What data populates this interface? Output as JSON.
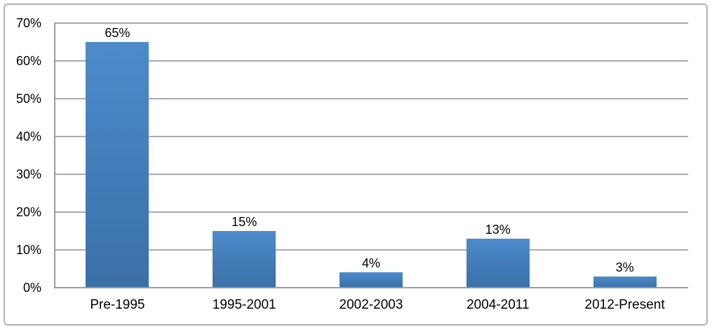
{
  "chart_data": {
    "type": "bar",
    "title": "",
    "xlabel": "",
    "ylabel": "",
    "categories": [
      "Pre-1995",
      "1995-2001",
      "2002-2003",
      "2004-2011",
      "2012-Present"
    ],
    "values": [
      65,
      15,
      4,
      13,
      3
    ],
    "value_labels": [
      "65%",
      "15%",
      "4%",
      "13%",
      "3%"
    ],
    "ylim": [
      0,
      70
    ],
    "y_tick_step": 10,
    "y_tick_labels": [
      "0%",
      "10%",
      "20%",
      "30%",
      "40%",
      "50%",
      "60%",
      "70%"
    ],
    "grid": "horizontal gridlines on",
    "legend": "none",
    "colors": {
      "bar_top": "#4c8bcb",
      "bar_bottom": "#3a70a8",
      "gridline": "#aaaaaa",
      "axis_line": "#9b9b9b",
      "frame_border": "#b3b3b3",
      "text": "#000000",
      "background": "#ffffff"
    }
  }
}
